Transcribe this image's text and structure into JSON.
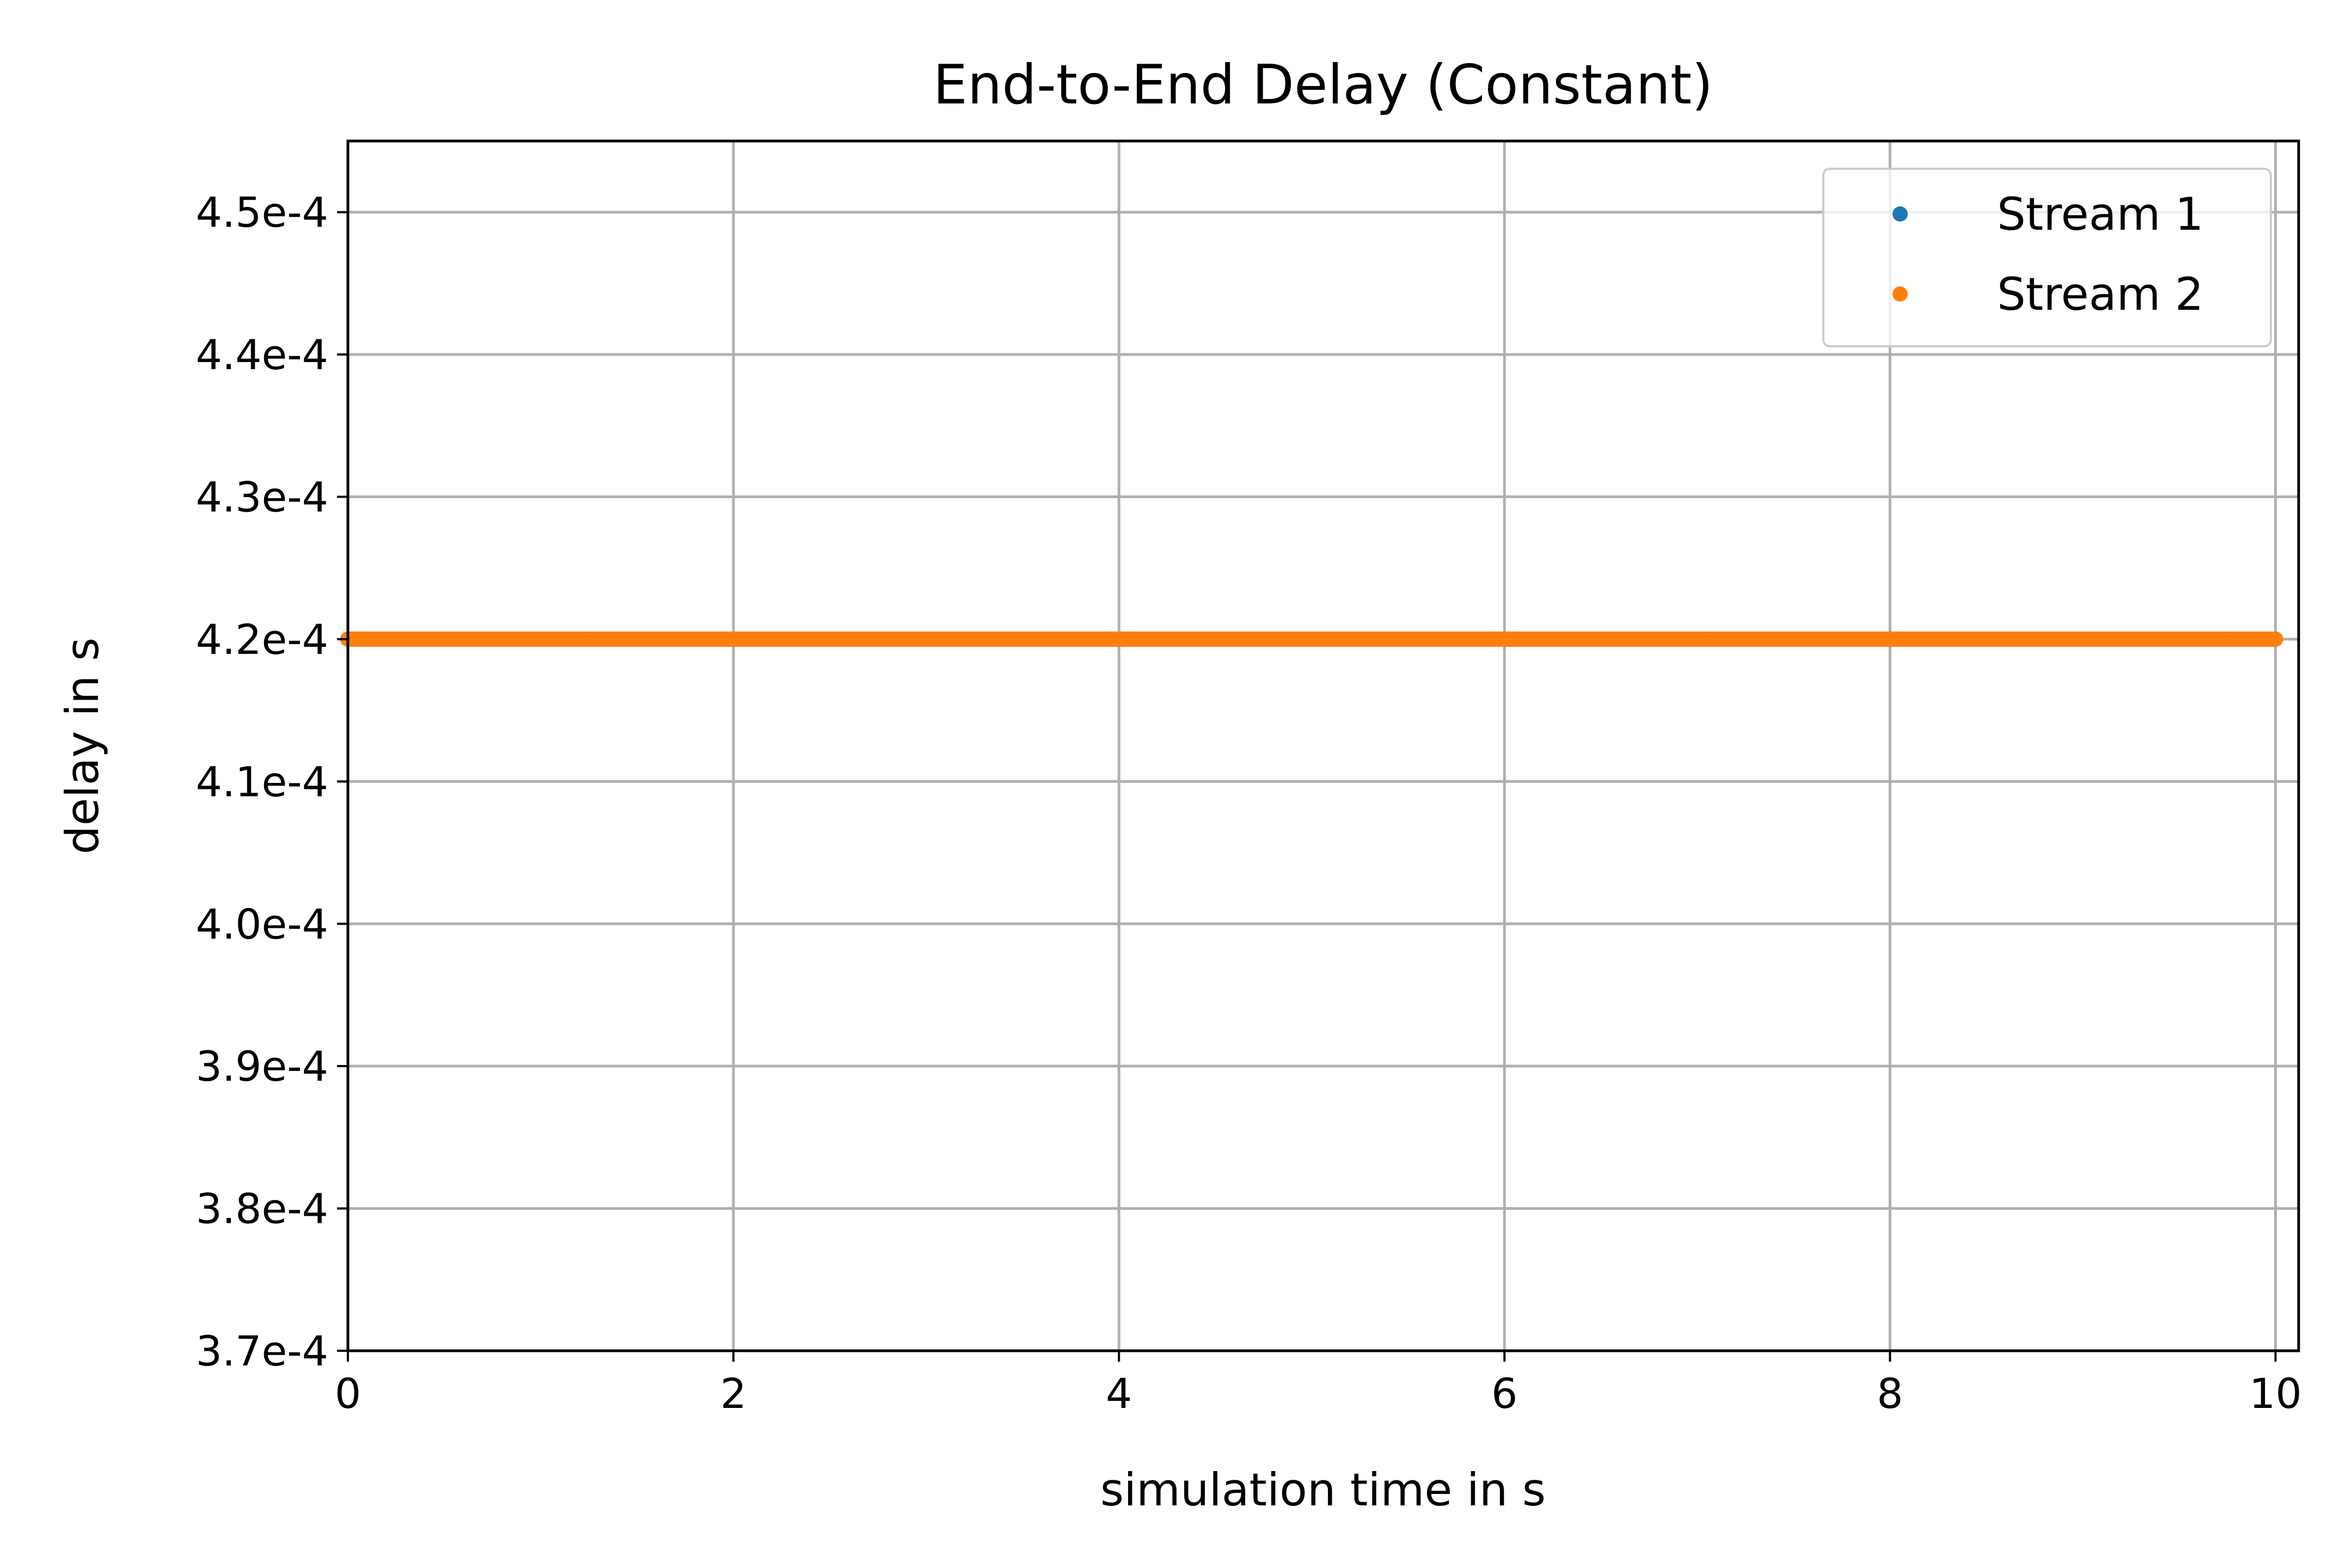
{
  "chart_data": {
    "type": "scatter",
    "title": "End-to-End Delay (Constant)",
    "xlabel": "simulation time in s",
    "ylabel": "delay in s",
    "xlim": [
      0,
      10.12
    ],
    "ylim": [
      0.00037,
      0.000455
    ],
    "x_ticks": [
      0,
      2,
      4,
      6,
      8,
      10
    ],
    "x_tick_labels": [
      "0",
      "2",
      "4",
      "6",
      "8",
      "10"
    ],
    "y_ticks": [
      0.00037,
      0.00038,
      0.00039,
      0.0004,
      0.00041,
      0.00042,
      0.00043,
      0.00044,
      0.00045
    ],
    "y_tick_labels": [
      "3.7e-4",
      "3.8e-4",
      "3.9e-4",
      "4.0e-4",
      "4.1e-4",
      "4.2e-4",
      "4.3e-4",
      "4.4e-4",
      "4.5e-4"
    ],
    "grid": true,
    "legend_position": "top-right",
    "series": [
      {
        "name": "Stream 1",
        "color": "#1f77b4",
        "constant_value": 0.00042,
        "x_range": [
          0,
          10
        ]
      },
      {
        "name": "Stream 2",
        "color": "#ff7f0e",
        "constant_value": 0.00042,
        "x_range": [
          0,
          10
        ]
      }
    ]
  }
}
